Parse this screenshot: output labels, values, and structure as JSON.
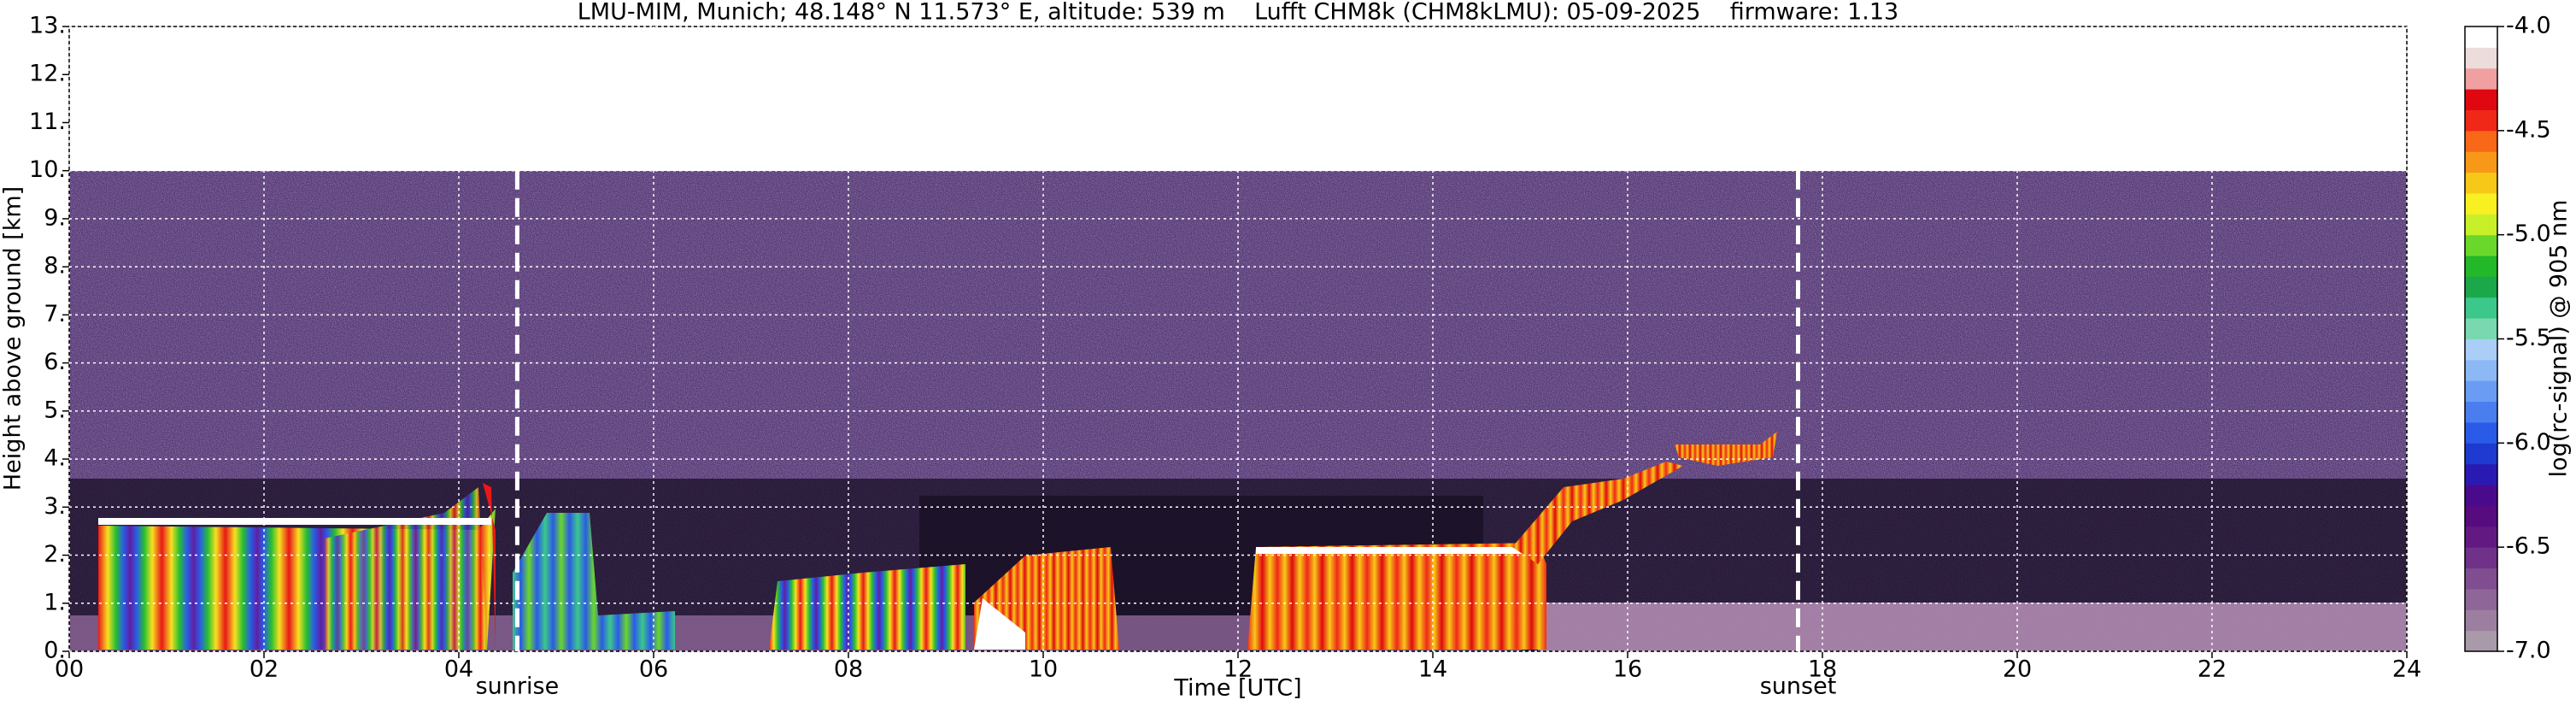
{
  "chart_data": {
    "type": "heatmap",
    "title": "LMU-MIM, Munich; 48.148° N 11.573° E, altitude: 539 m    Lufft CHM8k (CHM8kLMU): 05-09-2025    firmware: 1.13",
    "xlabel": "Time [UTC]",
    "ylabel": "Height above ground [km]",
    "xlim": [
      0,
      24
    ],
    "xticks": [
      {
        "value": 0,
        "label": "00"
      },
      {
        "value": 2,
        "label": "02"
      },
      {
        "value": 4,
        "label": "04"
      },
      {
        "value": 6,
        "label": "06"
      },
      {
        "value": 8,
        "label": "08"
      },
      {
        "value": 10,
        "label": "10"
      },
      {
        "value": 12,
        "label": "12"
      },
      {
        "value": 14,
        "label": "14"
      },
      {
        "value": 16,
        "label": "16"
      },
      {
        "value": 18,
        "label": "18"
      },
      {
        "value": 20,
        "label": "20"
      },
      {
        "value": 22,
        "label": "22"
      },
      {
        "value": 24,
        "label": "24"
      }
    ],
    "ylim": [
      0,
      13
    ],
    "yticks": [
      {
        "value": 0,
        "label": "0."
      },
      {
        "value": 1,
        "label": "1."
      },
      {
        "value": 2,
        "label": "2."
      },
      {
        "value": 3,
        "label": "3."
      },
      {
        "value": 4,
        "label": "4."
      },
      {
        "value": 5,
        "label": "5."
      },
      {
        "value": 6,
        "label": "6."
      },
      {
        "value": 7,
        "label": "7."
      },
      {
        "value": 8,
        "label": "8."
      },
      {
        "value": 9,
        "label": "9."
      },
      {
        "value": 10,
        "label": "10."
      },
      {
        "value": 11,
        "label": "11."
      },
      {
        "value": 12,
        "label": "12."
      },
      {
        "value": 13,
        "label": "13."
      }
    ],
    "grid": true,
    "annotations": [
      {
        "text": "sunrise",
        "x": 4.6
      },
      {
        "text": "sunset",
        "x": 17.75
      }
    ],
    "colorbar": {
      "label": "log(rc-signal) @ 905 nm",
      "lim": [
        -7,
        -4
      ],
      "ticks": [
        {
          "value": -4,
          "label": "-4.0"
        },
        {
          "value": -4.5,
          "label": "-4.5"
        },
        {
          "value": -5,
          "label": "-5.0"
        },
        {
          "value": -5.5,
          "label": "-5.5"
        },
        {
          "value": -6,
          "label": "-6.0"
        },
        {
          "value": -6.5,
          "label": "-6.5"
        },
        {
          "value": -7,
          "label": "-7.0"
        }
      ],
      "colors": [
        "#a89aa8",
        "#9c7fa0",
        "#8e6698",
        "#7f4d90",
        "#703288",
        "#621a82",
        "#560b7e",
        "#4a0a8c",
        "#2a1ab4",
        "#1e3ad0",
        "#2a5ae8",
        "#4a7ef0",
        "#6a9cf4",
        "#8cb8f6",
        "#aacef8",
        "#7ad8b0",
        "#3cc88a",
        "#1aa84a",
        "#22b82a",
        "#6ad82a",
        "#c8f028",
        "#f8f020",
        "#f8c818",
        "#f89818",
        "#f86818",
        "#f02818",
        "#e00810",
        "#f0a0a0",
        "#ecdcdc",
        "#ffffff"
      ]
    }
  }
}
